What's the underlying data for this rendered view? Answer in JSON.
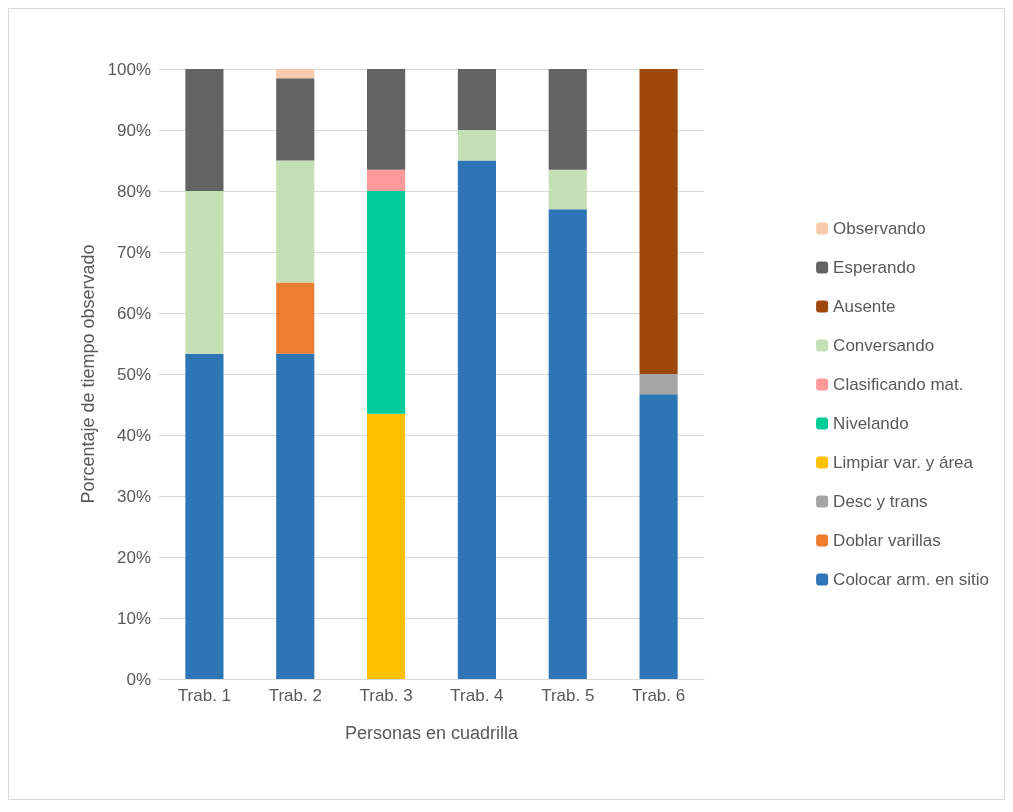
{
  "chart_data": {
    "type": "bar",
    "stacked": true,
    "xlabel": "Personas en cuadrilla",
    "ylabel": "Porcentaje de tiempo observado",
    "categories": [
      "Trab. 1",
      "Trab. 2",
      "Trab. 3",
      "Trab. 4",
      "Trab. 5",
      "Trab. 6"
    ],
    "series": [
      {
        "name": "Colocar arm. en sitio",
        "color": "#2e75b6",
        "values": [
          53.3,
          53.3,
          null,
          85,
          77,
          46.7
        ]
      },
      {
        "name": "Doblar varillas",
        "color": "#ed7d31",
        "values": [
          null,
          11.7,
          null,
          null,
          null,
          null
        ]
      },
      {
        "name": "Desc y trans",
        "color": "#a5a5a5",
        "values": [
          null,
          null,
          null,
          null,
          null,
          3.3
        ]
      },
      {
        "name": "Limpiar var. y área",
        "color": "#ffc000",
        "values": [
          null,
          null,
          43.5,
          null,
          null,
          null
        ]
      },
      {
        "name": "Nivelando",
        "color": "#00cc99",
        "values": [
          null,
          null,
          36.5,
          null,
          null,
          null
        ]
      },
      {
        "name": "Clasificando mat.",
        "color": "#ff9999",
        "values": [
          null,
          null,
          3.5,
          null,
          null,
          null
        ]
      },
      {
        "name": "Conversando",
        "color": "#c5e0b4",
        "values": [
          26.7,
          20,
          null,
          5,
          6.5,
          null
        ]
      },
      {
        "name": "Ausente",
        "color": "#9e480e",
        "values": [
          null,
          null,
          null,
          null,
          null,
          50
        ]
      },
      {
        "name": "Esperando",
        "color": "#636363",
        "values": [
          20,
          13.5,
          16.5,
          10,
          16.5,
          null
        ]
      },
      {
        "name": "Observando",
        "color": "#f8cbad",
        "values": [
          null,
          1.5,
          null,
          null,
          null,
          null
        ]
      }
    ],
    "ylim": [
      0,
      100
    ],
    "yticks": [
      {
        "value": 0,
        "label": "0%"
      },
      {
        "value": 10,
        "label": "10%"
      },
      {
        "value": 20,
        "label": "20%"
      },
      {
        "value": 30,
        "label": "30%"
      },
      {
        "value": 40,
        "label": "40%"
      },
      {
        "value": 50,
        "label": "50%"
      },
      {
        "value": 60,
        "label": "60%"
      },
      {
        "value": 70,
        "label": "70%"
      },
      {
        "value": 80,
        "label": "80%"
      },
      {
        "value": 90,
        "label": "90%"
      },
      {
        "value": 100,
        "label": "100%"
      }
    ],
    "grid": "y",
    "legend": "right"
  }
}
